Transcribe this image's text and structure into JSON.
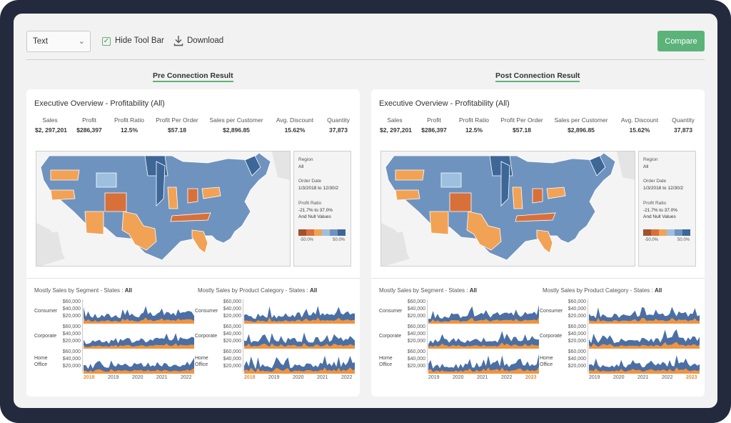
{
  "toolbar": {
    "select_value": "Text",
    "hide_toolbar_label": "Hide Tool Bar",
    "hide_toolbar_checked": true,
    "download_label": "Download",
    "compare_label": "Compare"
  },
  "sections": {
    "pre_title": "Pre Connection Result",
    "post_title": "Post Connection Result"
  },
  "colors": {
    "accent": "#5cb37a",
    "map_blue": "#6f93bf",
    "map_dark_blue": "#3d6796",
    "map_light_blue": "#9dc0de",
    "map_orange": "#f2a255",
    "map_dark_orange": "#d8703a",
    "area_blue": "#4a6fa5",
    "area_orange": "#ef9440"
  },
  "panels": [
    {
      "title": "Executive Overview - Profitability (All)",
      "kpis": [
        {
          "label": "Sales",
          "value": "$2, 297,201"
        },
        {
          "label": "Profit",
          "value": "$286,397"
        },
        {
          "label": "Profit Ratio",
          "value": "12.5%"
        },
        {
          "label": "Profit Per Order",
          "value": "$57.18"
        },
        {
          "label": "Sales per Customer",
          "value": "$2,896.85"
        },
        {
          "label": "Avg. Discount",
          "value": "15.62%"
        },
        {
          "label": "Quantity",
          "value": "37,873"
        }
      ],
      "legend": {
        "region_label": "Region",
        "region_value": "All",
        "order_date_label": "Order Date",
        "order_date_value": "1/3/2018 to 12/30/2",
        "profit_ratio_label": "Profit Ratio",
        "profit_ratio_range": "-21.7% to 37.0%",
        "profit_ratio_null": "And Null Values",
        "ramp_min": "-50.0%",
        "ramp_max": "50.0%"
      },
      "trends": {
        "segment_title": "Mostly Sales by Segment - States :",
        "segment_filter": "All",
        "category_title": "Mostly Sales by Product Category - States :",
        "category_filter": "All",
        "segment_rows": [
          "Consumer",
          "Corporate",
          "Home\nOffice"
        ],
        "category_rows": [
          "Consumer",
          "Corporate",
          "Home\nOffice"
        ],
        "axis_ticks": [
          "$60,000",
          "$40,000",
          "$20,000"
        ],
        "segment_years": [
          "2018",
          "2019",
          "2020",
          "2021",
          "2022"
        ],
        "segment_highlight": "2018",
        "category_years": [
          "2018",
          "2019",
          "2020",
          "2021",
          "2022"
        ],
        "category_highlight": "2018"
      }
    },
    {
      "title": "Executive Overview - Profitability (All)",
      "kpis": [
        {
          "label": "Sales",
          "value": "$2, 297,201"
        },
        {
          "label": "Profit",
          "value": "$286,397"
        },
        {
          "label": "Profit Ratio",
          "value": "12.5%"
        },
        {
          "label": "Profit Per Order",
          "value": "$57.18"
        },
        {
          "label": "Sales per Customer",
          "value": "$2,896.85"
        },
        {
          "label": "Avg. Discount",
          "value": "15.62%"
        },
        {
          "label": "Quantity",
          "value": "37,873"
        }
      ],
      "legend": {
        "region_label": "Region",
        "region_value": "All",
        "order_date_label": "Order Date",
        "order_date_value": "1/3/2018 to 12/30/2",
        "profit_ratio_label": "Profit Ratio",
        "profit_ratio_range": "-21.7% to 37.0%",
        "profit_ratio_null": "And Null Values",
        "ramp_min": "-50.0%",
        "ramp_max": "50.0%"
      },
      "trends": {
        "segment_title": "Mostly Sales by Segment - States :",
        "segment_filter": "All",
        "category_title": "Mostly Sales by Product Category - States :",
        "category_filter": "All",
        "segment_rows": [
          "Consumer",
          "Corporate",
          "Home\nOffice"
        ],
        "category_rows": [
          "Consumer",
          "Corporate",
          "Home\nOffice"
        ],
        "axis_ticks": [
          "$60,000",
          "$40,000",
          "$20,000"
        ],
        "segment_years": [
          "2019",
          "2020",
          "2021",
          "2022",
          "2023"
        ],
        "segment_highlight": "2023",
        "category_years": [
          "2019",
          "2020",
          "2021",
          "2022",
          "2023"
        ],
        "category_highlight": "2023"
      }
    }
  ]
}
